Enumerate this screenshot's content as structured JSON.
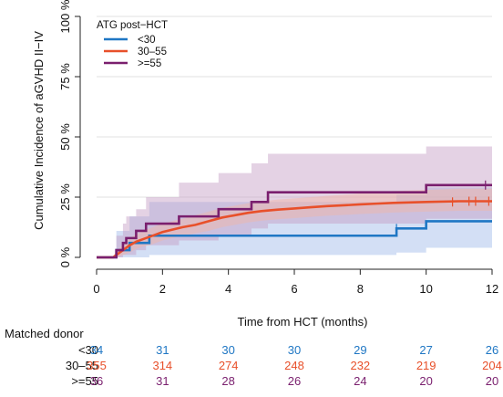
{
  "chart_data": {
    "type": "line",
    "subtype": "step-cumulative-incidence",
    "xlabel": "Time from HCT (months)",
    "ylabel": "Cumulative Incidence of aGVHD II−IV",
    "xlim": [
      0,
      12
    ],
    "ylim": [
      0,
      100
    ],
    "x_ticks": [
      0,
      2,
      4,
      6,
      8,
      10,
      12
    ],
    "y_ticks": [
      0,
      25,
      50,
      75,
      100
    ],
    "y_tick_labels": [
      "0 %",
      "25 %",
      "50 %",
      "75 %",
      "100 %"
    ],
    "grid": true,
    "legend": {
      "title": "ATG post−HCT",
      "placement": "top-left"
    },
    "series": [
      {
        "name": "<30",
        "color": "#1f77c4",
        "band_color": "#9db8e8",
        "step": [
          [
            0,
            0
          ],
          [
            0.6,
            0
          ],
          [
            0.6,
            3
          ],
          [
            1.0,
            3
          ],
          [
            1.0,
            6
          ],
          [
            1.6,
            6
          ],
          [
            1.6,
            9
          ],
          [
            9.1,
            9
          ],
          [
            9.1,
            12
          ],
          [
            10.0,
            12
          ],
          [
            10.0,
            15
          ],
          [
            12,
            15
          ]
        ],
        "ci_upper": [
          [
            0,
            0
          ],
          [
            0.6,
            0
          ],
          [
            0.6,
            11
          ],
          [
            1.0,
            11
          ],
          [
            1.0,
            17
          ],
          [
            1.6,
            17
          ],
          [
            1.6,
            23
          ],
          [
            9.1,
            23
          ],
          [
            9.1,
            26
          ],
          [
            10.0,
            26
          ],
          [
            10.0,
            29
          ],
          [
            12,
            29
          ]
        ],
        "ci_lower": [
          [
            0,
            0
          ],
          [
            1.6,
            0
          ],
          [
            1.6,
            1
          ],
          [
            9.1,
            1
          ],
          [
            9.1,
            2
          ],
          [
            10.0,
            2
          ],
          [
            10.0,
            4
          ],
          [
            12,
            4
          ]
        ],
        "censor_x": [
          9.1
        ]
      },
      {
        "name": "30–55",
        "color": "#e8502a",
        "band_color": "#f2b6a5",
        "step": [
          [
            0,
            0
          ],
          [
            0.5,
            0
          ],
          [
            0.6,
            1
          ],
          [
            0.8,
            3
          ],
          [
            1.0,
            5
          ],
          [
            1.2,
            6.5
          ],
          [
            1.4,
            7.5
          ],
          [
            1.6,
            8.5
          ],
          [
            1.8,
            9.5
          ],
          [
            2.0,
            10.5
          ],
          [
            2.3,
            11.5
          ],
          [
            2.6,
            12.5
          ],
          [
            3.0,
            13.5
          ],
          [
            3.4,
            15
          ],
          [
            3.8,
            16.5
          ],
          [
            4.2,
            17.5
          ],
          [
            4.6,
            18.5
          ],
          [
            5.0,
            19.2
          ],
          [
            5.5,
            19.8
          ],
          [
            6.0,
            20.3
          ],
          [
            6.5,
            20.8
          ],
          [
            7.0,
            21.3
          ],
          [
            7.5,
            21.6
          ],
          [
            8.0,
            22
          ],
          [
            8.5,
            22.3
          ],
          [
            9.0,
            22.6
          ],
          [
            10.0,
            23
          ],
          [
            11.0,
            23.3
          ],
          [
            12,
            23.3
          ]
        ],
        "ci_upper": [
          [
            0,
            0
          ],
          [
            0.5,
            0
          ],
          [
            0.6,
            3
          ],
          [
            0.8,
            5
          ],
          [
            1.0,
            8
          ],
          [
            1.2,
            9.5
          ],
          [
            1.4,
            11
          ],
          [
            1.6,
            12
          ],
          [
            1.8,
            13
          ],
          [
            2.0,
            14
          ],
          [
            2.3,
            15
          ],
          [
            2.6,
            16
          ],
          [
            3.0,
            17.5
          ],
          [
            3.4,
            19
          ],
          [
            3.8,
            20.5
          ],
          [
            4.2,
            21.5
          ],
          [
            4.6,
            22.5
          ],
          [
            5.0,
            23.2
          ],
          [
            5.5,
            24
          ],
          [
            6.0,
            24.5
          ],
          [
            6.5,
            25
          ],
          [
            7.0,
            25.5
          ],
          [
            7.5,
            26
          ],
          [
            8.0,
            26.5
          ],
          [
            8.5,
            27
          ],
          [
            9.0,
            27.5
          ],
          [
            10.0,
            28
          ],
          [
            11.0,
            28.5
          ],
          [
            12,
            28.5
          ]
        ],
        "ci_lower": [
          [
            0,
            0
          ],
          [
            0.6,
            0
          ],
          [
            0.8,
            1
          ],
          [
            1.0,
            2
          ],
          [
            1.2,
            3.5
          ],
          [
            1.4,
            4.5
          ],
          [
            1.6,
            5
          ],
          [
            1.8,
            6
          ],
          [
            2.0,
            7
          ],
          [
            2.3,
            8
          ],
          [
            2.6,
            9
          ],
          [
            3.0,
            10
          ],
          [
            3.4,
            11
          ],
          [
            3.8,
            12.5
          ],
          [
            4.2,
            13.5
          ],
          [
            4.6,
            14.5
          ],
          [
            5.0,
            15.2
          ],
          [
            5.5,
            15.8
          ],
          [
            6.0,
            16.3
          ],
          [
            6.5,
            16.8
          ],
          [
            7.0,
            17.3
          ],
          [
            7.5,
            17.6
          ],
          [
            8.0,
            18
          ],
          [
            8.5,
            18.3
          ],
          [
            9.0,
            18.6
          ],
          [
            10.0,
            19
          ],
          [
            11.0,
            19.3
          ],
          [
            12,
            19.3
          ]
        ],
        "censor_x": [
          10.8,
          11.3,
          11.5,
          11.9
        ]
      },
      {
        "name": ">=55",
        "color": "#7a1f6e",
        "band_color": "#c39bc3",
        "step": [
          [
            0,
            0
          ],
          [
            0.6,
            0
          ],
          [
            0.6,
            3
          ],
          [
            0.8,
            3
          ],
          [
            0.8,
            6
          ],
          [
            0.9,
            6
          ],
          [
            0.9,
            8
          ],
          [
            1.2,
            8
          ],
          [
            1.2,
            11
          ],
          [
            1.5,
            11
          ],
          [
            1.5,
            14
          ],
          [
            2.5,
            14
          ],
          [
            2.5,
            17
          ],
          [
            3.7,
            17
          ],
          [
            3.7,
            20
          ],
          [
            4.7,
            20
          ],
          [
            4.7,
            23
          ],
          [
            5.2,
            23
          ],
          [
            5.2,
            27
          ],
          [
            10.0,
            27
          ],
          [
            10.0,
            30
          ],
          [
            12,
            30
          ]
        ],
        "ci_upper": [
          [
            0,
            0
          ],
          [
            0.6,
            0
          ],
          [
            0.6,
            9
          ],
          [
            0.8,
            9
          ],
          [
            0.8,
            14
          ],
          [
            0.9,
            14
          ],
          [
            0.9,
            17
          ],
          [
            1.2,
            17
          ],
          [
            1.2,
            20
          ],
          [
            1.5,
            20
          ],
          [
            1.5,
            25
          ],
          [
            2.5,
            25
          ],
          [
            2.5,
            31
          ],
          [
            3.7,
            31
          ],
          [
            3.7,
            35
          ],
          [
            4.7,
            35
          ],
          [
            4.7,
            39
          ],
          [
            5.2,
            39
          ],
          [
            5.2,
            43
          ],
          [
            10.0,
            43
          ],
          [
            10.0,
            46
          ],
          [
            12,
            46
          ]
        ],
        "ci_lower": [
          [
            0,
            0
          ],
          [
            0.8,
            0
          ],
          [
            0.8,
            1
          ],
          [
            1.2,
            1
          ],
          [
            1.2,
            3
          ],
          [
            1.5,
            3
          ],
          [
            1.5,
            5
          ],
          [
            2.5,
            5
          ],
          [
            2.5,
            7
          ],
          [
            3.7,
            7
          ],
          [
            3.7,
            9
          ],
          [
            4.7,
            9
          ],
          [
            4.7,
            12
          ],
          [
            5.2,
            12
          ],
          [
            5.2,
            14
          ],
          [
            10.0,
            14
          ],
          [
            10.0,
            16
          ],
          [
            12,
            16
          ]
        ],
        "censor_x": [
          11.8
        ]
      }
    ],
    "risk_table": {
      "title": "Matched donor",
      "rows": [
        {
          "name": "<30",
          "color": "#1f77c4",
          "values": [
            34,
            31,
            30,
            30,
            29,
            27,
            26
          ]
        },
        {
          "name": "30–55",
          "color": "#e8502a",
          "values": [
            355,
            314,
            274,
            248,
            232,
            219,
            204
          ]
        },
        {
          "name": ">=55",
          "color": "#7a1f6e",
          "values": [
            36,
            31,
            28,
            26,
            24,
            20,
            20
          ]
        }
      ]
    }
  }
}
